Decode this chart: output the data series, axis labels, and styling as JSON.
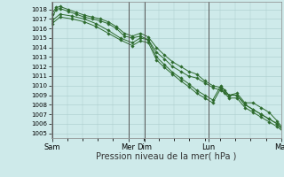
{
  "bg_color": "#ceeaea",
  "grid_color": "#aacccc",
  "line_color": "#2d6b2d",
  "marker_color": "#2d6b2d",
  "xlabel": "Pression niveau de la mer( hPa )",
  "xlabel_fontsize": 7,
  "ytick_fontsize": 5,
  "xtick_fontsize": 6,
  "ylim": [
    1004.5,
    1018.8
  ],
  "xlim": [
    -1,
    162
  ],
  "day_labels": [
    "Sam",
    "Mer",
    "Dim",
    "Lun",
    "Mar"
  ],
  "day_positions": [
    0,
    95,
    115,
    195,
    285
  ],
  "vline_color": "#555555",
  "series1_x": [
    0,
    5,
    10,
    20,
    30,
    40,
    50,
    60,
    70,
    80,
    90,
    100,
    110,
    120,
    130,
    140,
    150,
    160,
    170,
    180,
    190,
    200,
    210,
    215,
    220,
    230,
    240,
    250,
    260,
    270,
    280,
    290
  ],
  "series1_y": [
    1017.0,
    1018.0,
    1018.1,
    1017.8,
    1017.5,
    1017.2,
    1017.0,
    1016.8,
    1016.5,
    1016.0,
    1015.2,
    1015.0,
    1015.2,
    1014.8,
    1013.5,
    1012.8,
    1012.0,
    1011.5,
    1011.0,
    1010.8,
    1010.3,
    1009.8,
    1009.5,
    1009.2,
    1009.0,
    1009.0,
    1008.0,
    1007.5,
    1007.0,
    1006.5,
    1006.0,
    1005.0
  ],
  "series2_x": [
    0,
    5,
    10,
    20,
    30,
    40,
    50,
    60,
    70,
    80,
    90,
    100,
    110,
    120,
    130,
    140,
    150,
    160,
    170,
    180,
    190,
    200,
    210,
    215,
    220,
    230,
    240,
    250,
    260,
    270,
    280,
    290
  ],
  "series2_y": [
    1017.5,
    1018.2,
    1018.3,
    1018.0,
    1017.7,
    1017.4,
    1017.2,
    1017.0,
    1016.7,
    1016.2,
    1015.5,
    1015.2,
    1015.5,
    1015.1,
    1014.0,
    1013.2,
    1012.5,
    1012.0,
    1011.5,
    1011.2,
    1010.5,
    1010.0,
    1009.8,
    1009.5,
    1009.0,
    1009.2,
    1008.2,
    1008.2,
    1007.7,
    1007.2,
    1006.3,
    1005.2
  ],
  "series3_x": [
    0,
    10,
    25,
    40,
    55,
    70,
    85,
    100,
    110,
    120,
    130,
    140,
    150,
    160,
    170,
    180,
    190,
    200,
    210,
    220,
    230,
    240,
    250,
    260,
    270,
    280,
    290
  ],
  "series3_y": [
    1016.8,
    1017.5,
    1017.3,
    1017.0,
    1016.5,
    1015.8,
    1015.0,
    1014.5,
    1015.0,
    1014.8,
    1013.0,
    1012.2,
    1011.4,
    1010.8,
    1010.2,
    1009.5,
    1009.0,
    1008.5,
    1010.0,
    1009.0,
    1009.0,
    1008.0,
    1007.5,
    1007.0,
    1006.5,
    1006.0,
    1005.2
  ],
  "series4_x": [
    0,
    10,
    25,
    40,
    55,
    70,
    85,
    100,
    110,
    120,
    130,
    140,
    150,
    160,
    170,
    180,
    190,
    200,
    210,
    220,
    230,
    240,
    250,
    260,
    270,
    280,
    290
  ],
  "series4_y": [
    1016.5,
    1017.2,
    1017.0,
    1016.7,
    1016.2,
    1015.5,
    1014.8,
    1014.2,
    1014.7,
    1014.5,
    1012.7,
    1011.9,
    1011.2,
    1010.5,
    1009.9,
    1009.2,
    1008.7,
    1008.2,
    1009.7,
    1008.7,
    1008.7,
    1007.7,
    1007.2,
    1006.7,
    1006.2,
    1005.7,
    1005.0
  ]
}
